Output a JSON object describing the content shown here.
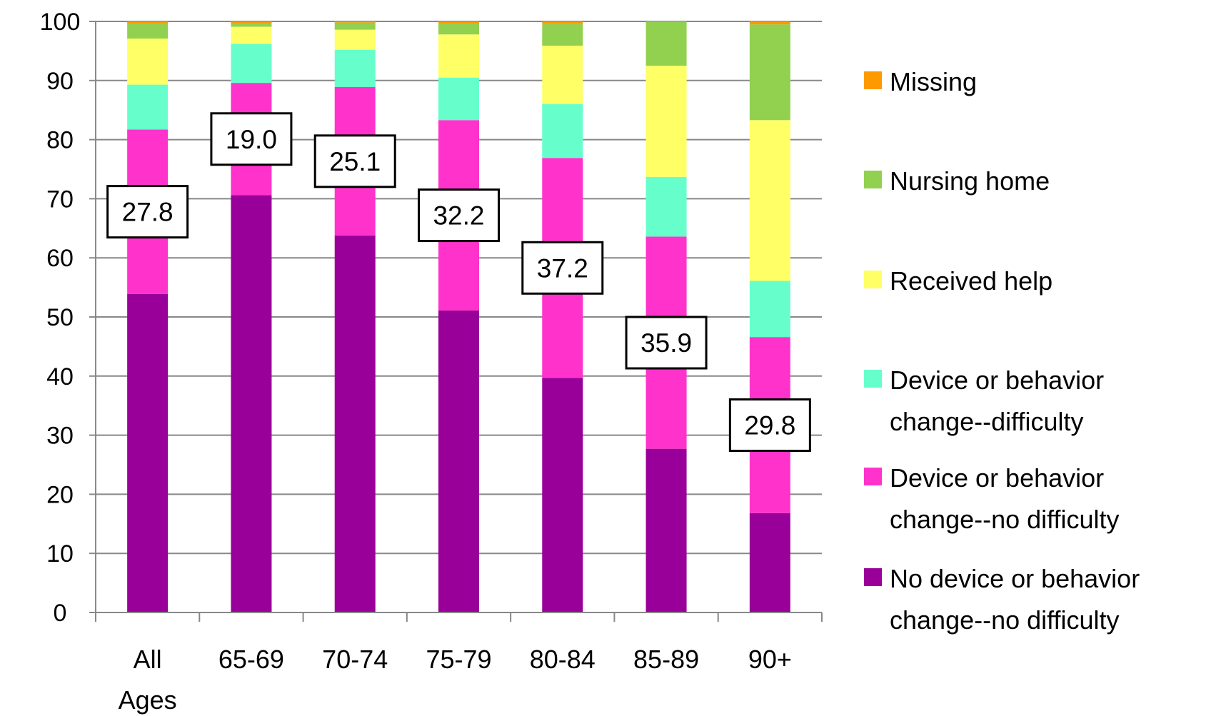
{
  "chart_data": {
    "type": "bar",
    "stacked": true,
    "title": "",
    "xlabel": "",
    "ylabel": "",
    "ylim": [
      0,
      100
    ],
    "yticks": [
      0,
      10,
      20,
      30,
      40,
      50,
      60,
      70,
      80,
      90,
      100
    ],
    "grid": true,
    "legend_position": "right",
    "categories": [
      "All Ages",
      "65-69",
      "70-74",
      "75-79",
      "80-84",
      "85-89",
      "90+"
    ],
    "series": [
      {
        "name": "No device or behavior change--no difficulty",
        "color": "#990099",
        "values": [
          53.9,
          70.6,
          63.8,
          51.1,
          39.7,
          27.7,
          16.8
        ]
      },
      {
        "name": "Device or behavior change--no difficulty",
        "color": "#ff33cc",
        "values": [
          27.8,
          19.0,
          25.1,
          32.2,
          37.2,
          35.9,
          29.8
        ]
      },
      {
        "name": "Device or behavior change--difficulty",
        "color": "#66ffcc",
        "values": [
          7.6,
          6.6,
          6.3,
          7.2,
          9.1,
          10.1,
          9.5
        ]
      },
      {
        "name": "Received help",
        "color": "#ffff66",
        "values": [
          7.8,
          2.9,
          3.4,
          7.3,
          9.9,
          18.8,
          27.2
        ]
      },
      {
        "name": "Nursing home",
        "color": "#92d050",
        "values": [
          2.6,
          0.6,
          1.2,
          1.9,
          3.7,
          7.5,
          16.2
        ]
      },
      {
        "name": "Missing",
        "color": "#ff9900",
        "values": [
          0.3,
          0.3,
          0.2,
          0.3,
          0.4,
          0.0,
          0.5
        ]
      }
    ],
    "data_labels": [
      {
        "category": "All Ages",
        "text": "27.8"
      },
      {
        "category": "65-69",
        "text": "19.0"
      },
      {
        "category": "70-74",
        "text": "25.1"
      },
      {
        "category": "75-79",
        "text": "32.2"
      },
      {
        "category": "80-84",
        "text": "37.2"
      },
      {
        "category": "85-89",
        "text": "35.9"
      },
      {
        "category": "90+",
        "text": "29.8"
      }
    ],
    "legend_order": [
      "Missing",
      "Nursing home",
      "Received help",
      "Device or behavior change--difficulty",
      "Device or behavior change--no difficulty",
      "No device or behavior change--no difficulty"
    ],
    "colors": {
      "grid": "#888888",
      "axis": "#888888",
      "label_box_border": "#000000",
      "label_box_fill": "#ffffff"
    }
  }
}
